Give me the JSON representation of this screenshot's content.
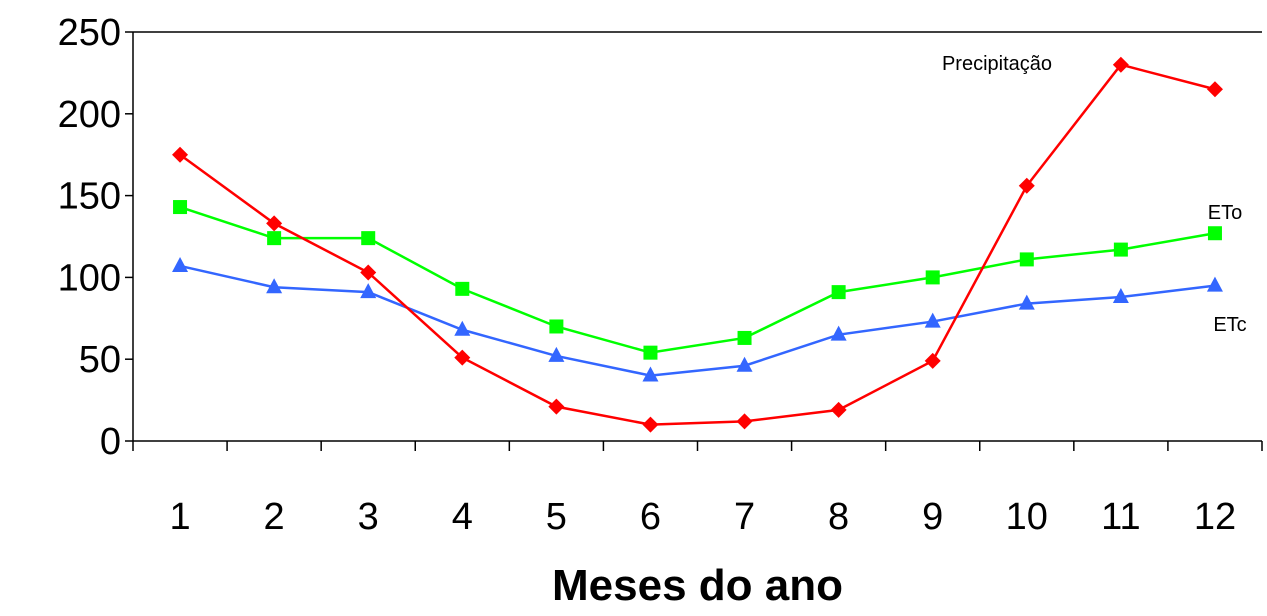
{
  "chart_data": {
    "type": "line",
    "title": "",
    "xlabel": "Meses do ano",
    "ylabel": "",
    "x": [
      1,
      2,
      3,
      4,
      5,
      6,
      7,
      8,
      9,
      10,
      11,
      12
    ],
    "ylim": [
      0,
      250
    ],
    "yticks": [
      0,
      50,
      100,
      150,
      200,
      250
    ],
    "grid": false,
    "series": [
      {
        "name": "Precipitação",
        "color": "#ff0000",
        "marker": "diamond",
        "values": [
          175,
          133,
          103,
          51,
          21,
          10,
          12,
          19,
          49,
          156,
          230,
          215
        ]
      },
      {
        "name": "ETo",
        "color": "#00ff00",
        "marker": "square",
        "values": [
          143,
          124,
          124,
          93,
          70,
          54,
          63,
          91,
          100,
          111,
          117,
          127
        ]
      },
      {
        "name": "ETc",
        "color": "#3366ff",
        "marker": "triangle",
        "values": [
          107,
          94,
          91,
          68,
          52,
          40,
          46,
          65,
          73,
          84,
          88,
          95
        ]
      }
    ]
  }
}
